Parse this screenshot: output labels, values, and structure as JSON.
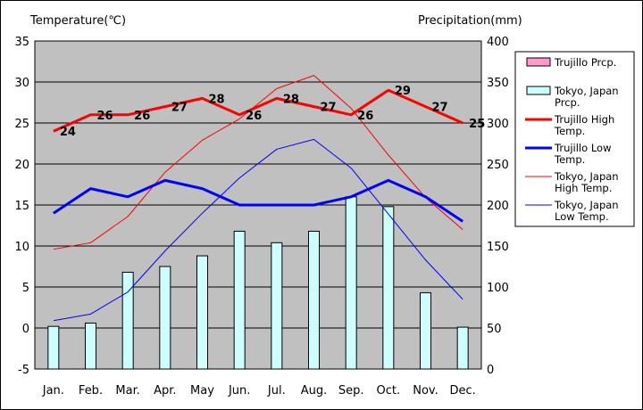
{
  "chart_data": {
    "type": "bar+line",
    "title": "",
    "left_axis": {
      "label": "Temperature(℃)",
      "min": -5,
      "max": 35,
      "step": 5
    },
    "right_axis": {
      "label": "Precipitation(mm)",
      "min": 0,
      "max": 400,
      "step": 50
    },
    "categories": [
      "Jan.",
      "Feb.",
      "Mar.",
      "Apr.",
      "May",
      "Jun.",
      "Jul.",
      "Aug.",
      "Sep.",
      "Oct.",
      "Nov.",
      "Dec."
    ],
    "grid": true,
    "legend_position": "right",
    "series": [
      {
        "name": "Trujillo Prcp.",
        "kind": "bar",
        "axis": "right",
        "color": "#ff99cc",
        "values": [
          0,
          0,
          0,
          0,
          0,
          0,
          0,
          0,
          0,
          0,
          0,
          0
        ]
      },
      {
        "name": "Tokyo, Japan Prcp.",
        "kind": "bar",
        "axis": "right",
        "color": "#ccffff",
        "values": [
          52,
          56,
          118,
          125,
          138,
          168,
          154,
          168,
          210,
          198,
          93,
          51
        ]
      },
      {
        "name": "Trujillo High Temp.",
        "kind": "line",
        "axis": "left",
        "color": "#ff0000",
        "width": 3,
        "values": [
          24,
          26,
          26,
          27,
          28,
          26,
          28,
          27,
          26,
          29,
          27,
          25
        ],
        "labels": [
          "24",
          "26",
          "26",
          "27",
          "28",
          "26",
          "28",
          "27",
          "26",
          "29",
          "27",
          "25"
        ]
      },
      {
        "name": "Trujillo Low Temp.",
        "kind": "line",
        "axis": "left",
        "color": "#0000ff",
        "width": 3,
        "values": [
          14,
          17,
          16,
          18,
          17,
          15,
          15,
          15,
          16,
          18,
          16,
          13
        ]
      },
      {
        "name": "Tokyo, Japan High Temp.",
        "kind": "line",
        "axis": "left",
        "color": "#ff0000",
        "width": 1,
        "values": [
          9.6,
          10.4,
          13.6,
          19.0,
          22.9,
          25.5,
          29.2,
          30.8,
          26.8,
          21.1,
          15.9,
          12.0
        ]
      },
      {
        "name": "Tokyo, Japan Low Temp.",
        "kind": "line",
        "axis": "left",
        "color": "#0000ff",
        "width": 1,
        "values": [
          0.9,
          1.7,
          4.4,
          9.4,
          14.0,
          18.3,
          21.8,
          23.0,
          19.5,
          13.9,
          8.3,
          3.5
        ]
      }
    ]
  },
  "legend": {
    "items": [
      {
        "lines": [
          "Trujillo Prcp."
        ],
        "swatch": "bar",
        "color": "#ff99cc"
      },
      {
        "lines": [
          "Tokyo, Japan",
          "Prcp."
        ],
        "swatch": "bar",
        "color": "#ccffff"
      },
      {
        "lines": [
          "Trujillo High",
          "Temp."
        ],
        "swatch": "line",
        "color": "#ff0000",
        "width": 3
      },
      {
        "lines": [
          "Trujillo Low",
          "Temp."
        ],
        "swatch": "line",
        "color": "#0000ff",
        "width": 3
      },
      {
        "lines": [
          "Tokyo, Japan",
          "High Temp."
        ],
        "swatch": "line",
        "color": "#ff0000",
        "width": 1
      },
      {
        "lines": [
          "Tokyo, Japan",
          "Low Temp."
        ],
        "swatch": "line",
        "color": "#0000ff",
        "width": 1
      }
    ]
  },
  "colors": {
    "plot_background": "#c0c0c0",
    "grid": "#000000"
  }
}
